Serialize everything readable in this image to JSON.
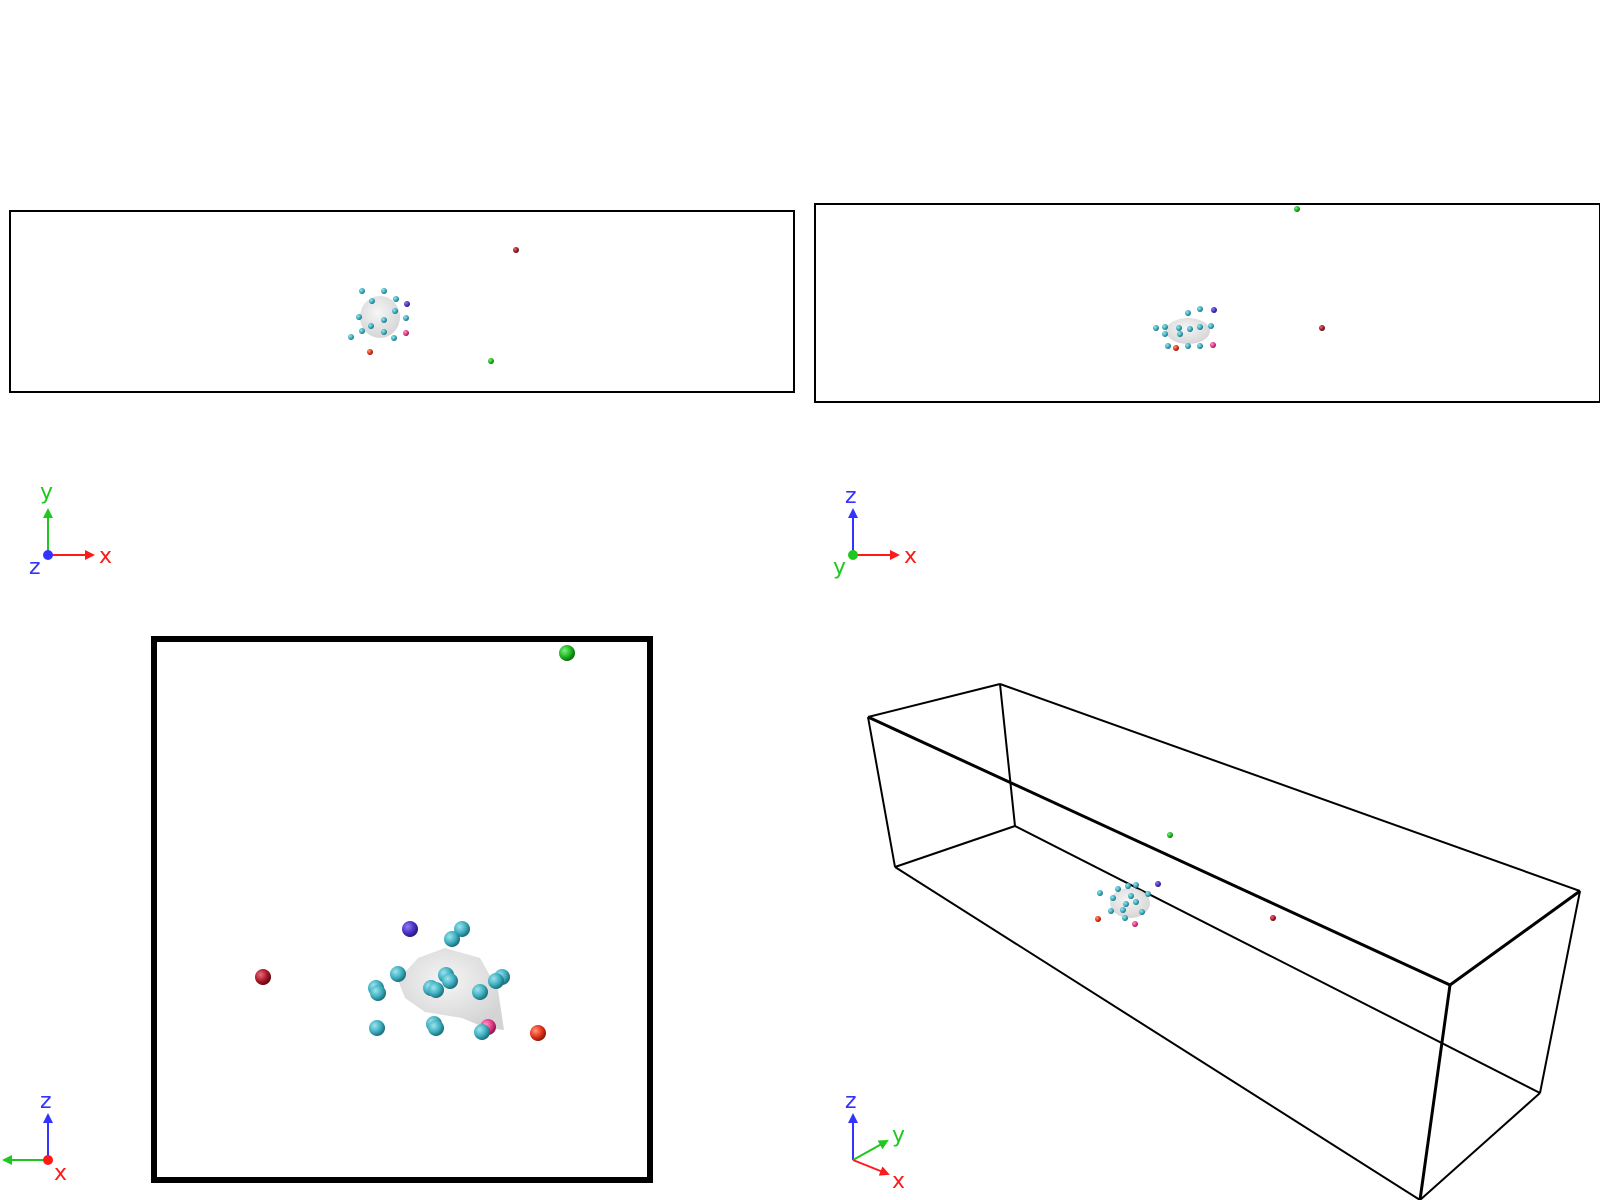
{
  "colors": {
    "axis_x": "#ff1a1a",
    "axis_y": "#1ec81e",
    "axis_z": "#3333ff",
    "teal_atom": "#3fb0c0",
    "blue_atom": "#4a33c8",
    "green_atom": "#1fb81f",
    "red_atom": "#e8331a",
    "darkred_atom": "#b01a28",
    "pink_atom": "#e83a8a",
    "cell_edge": "#000000",
    "surface": "#d9d9d9"
  },
  "panels": [
    {
      "id": "view-top",
      "projection": "z",
      "triad": {
        "right": "x",
        "up": "y",
        "out": "z"
      },
      "labels": {
        "right": "x",
        "up": "y",
        "out": "z"
      }
    },
    {
      "id": "view-front",
      "projection": "y",
      "triad": {
        "right": "x",
        "up": "z",
        "out": "y"
      },
      "labels": {
        "right": "x",
        "up": "z",
        "out": "y"
      }
    },
    {
      "id": "view-side",
      "projection": "x",
      "triad": {
        "left": "y",
        "up": "z",
        "out": "x"
      },
      "labels": {
        "left": "y",
        "up": "z",
        "out": "x"
      }
    },
    {
      "id": "view-perspective",
      "projection": "perspective",
      "labels": {
        "x": "x",
        "y": "y",
        "z": "z"
      }
    }
  ],
  "atoms": [
    {
      "kind": "teal",
      "count": 18
    },
    {
      "kind": "blue",
      "count": 1
    },
    {
      "kind": "pink",
      "count": 1
    },
    {
      "kind": "red",
      "count": 1
    },
    {
      "kind": "darkred",
      "count": 1
    },
    {
      "kind": "green",
      "count": 1
    }
  ]
}
